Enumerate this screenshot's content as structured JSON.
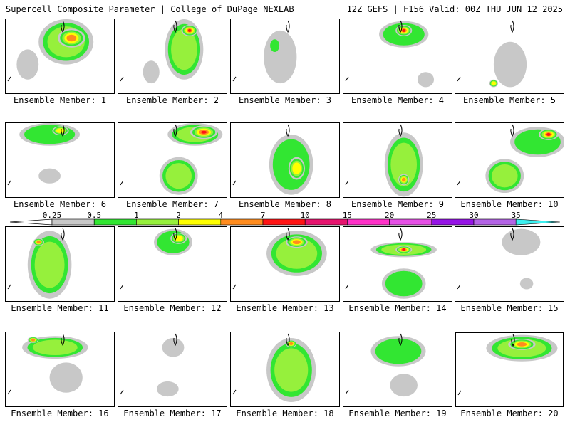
{
  "header": {
    "title_left": "Supercell Composite Parameter | College of DuPage NEXLAB",
    "title_right": "12Z GEFS | F156 Valid: 00Z THU JUN 12 2025"
  },
  "panels": [
    {
      "label": "Ensemble Member: 1",
      "blobs": [
        [
          0.55,
          0.3,
          0.5,
          0.6,
          3
        ],
        [
          0.6,
          0.25,
          0.25,
          0.25,
          7
        ],
        [
          0.2,
          0.6,
          0.2,
          0.4,
          1
        ]
      ]
    },
    {
      "label": "Ensemble Member: 2",
      "blobs": [
        [
          0.6,
          0.4,
          0.35,
          0.8,
          3
        ],
        [
          0.65,
          0.15,
          0.15,
          0.15,
          10
        ],
        [
          0.3,
          0.7,
          0.15,
          0.3,
          1
        ]
      ]
    },
    {
      "label": "Ensemble Member: 3",
      "blobs": [
        [
          0.45,
          0.5,
          0.3,
          0.7,
          1
        ],
        [
          0.4,
          0.35,
          0.1,
          0.2,
          2
        ]
      ]
    },
    {
      "label": "Ensemble Member: 4",
      "blobs": [
        [
          0.55,
          0.2,
          0.45,
          0.35,
          2
        ],
        [
          0.55,
          0.15,
          0.15,
          0.15,
          10
        ],
        [
          0.75,
          0.8,
          0.15,
          0.2,
          1
        ]
      ]
    },
    {
      "label": "Ensemble Member: 5",
      "blobs": [
        [
          0.5,
          0.6,
          0.3,
          0.6,
          1
        ],
        [
          0.35,
          0.85,
          0.08,
          0.1,
          4
        ]
      ]
    },
    {
      "label": "Ensemble Member: 6",
      "blobs": [
        [
          0.4,
          0.15,
          0.55,
          0.3,
          2
        ],
        [
          0.5,
          0.1,
          0.15,
          0.12,
          4
        ],
        [
          0.4,
          0.7,
          0.2,
          0.2,
          1
        ]
      ]
    },
    {
      "label": "Ensemble Member: 7",
      "blobs": [
        [
          0.7,
          0.15,
          0.5,
          0.3,
          3
        ],
        [
          0.78,
          0.12,
          0.25,
          0.18,
          10
        ],
        [
          0.55,
          0.7,
          0.35,
          0.5,
          3
        ]
      ]
    },
    {
      "label": "Ensemble Member: 8",
      "blobs": [
        [
          0.55,
          0.55,
          0.4,
          0.8,
          2
        ],
        [
          0.6,
          0.6,
          0.15,
          0.3,
          4
        ]
      ]
    },
    {
      "label": "Ensemble Member: 9",
      "blobs": [
        [
          0.55,
          0.55,
          0.35,
          0.85,
          3
        ],
        [
          0.55,
          0.75,
          0.1,
          0.15,
          7
        ]
      ]
    },
    {
      "label": "Ensemble Member: 10",
      "blobs": [
        [
          0.75,
          0.25,
          0.5,
          0.4,
          2
        ],
        [
          0.85,
          0.15,
          0.18,
          0.15,
          10
        ],
        [
          0.45,
          0.7,
          0.35,
          0.45,
          3
        ]
      ]
    },
    {
      "label": "Ensemble Member: 11",
      "blobs": [
        [
          0.4,
          0.5,
          0.4,
          0.9,
          3
        ],
        [
          0.3,
          0.2,
          0.1,
          0.1,
          7
        ]
      ]
    },
    {
      "label": "Ensemble Member: 12",
      "blobs": [
        [
          0.5,
          0.2,
          0.35,
          0.35,
          2
        ],
        [
          0.55,
          0.15,
          0.15,
          0.15,
          4
        ]
      ]
    },
    {
      "label": "Ensemble Member: 13",
      "blobs": [
        [
          0.6,
          0.35,
          0.55,
          0.6,
          3
        ],
        [
          0.6,
          0.2,
          0.2,
          0.15,
          7
        ]
      ]
    },
    {
      "label": "Ensemble Member: 14",
      "blobs": [
        [
          0.55,
          0.3,
          0.6,
          0.2,
          3
        ],
        [
          0.55,
          0.3,
          0.15,
          0.1,
          10
        ],
        [
          0.55,
          0.75,
          0.4,
          0.4,
          2
        ]
      ]
    },
    {
      "label": "Ensemble Member: 15",
      "blobs": [
        [
          0.6,
          0.2,
          0.35,
          0.35,
          1
        ],
        [
          0.65,
          0.75,
          0.12,
          0.15,
          1
        ]
      ]
    },
    {
      "label": "Ensemble Member: 16",
      "blobs": [
        [
          0.45,
          0.2,
          0.6,
          0.3,
          3
        ],
        [
          0.25,
          0.1,
          0.1,
          0.08,
          7
        ],
        [
          0.55,
          0.6,
          0.3,
          0.4,
          1
        ]
      ]
    },
    {
      "label": "Ensemble Member: 17",
      "blobs": [
        [
          0.5,
          0.2,
          0.2,
          0.25,
          1
        ],
        [
          0.45,
          0.75,
          0.2,
          0.2,
          1
        ]
      ]
    },
    {
      "label": "Ensemble Member: 18",
      "blobs": [
        [
          0.55,
          0.5,
          0.45,
          0.85,
          3
        ],
        [
          0.55,
          0.15,
          0.1,
          0.1,
          7
        ]
      ]
    },
    {
      "label": "Ensemble Member: 19",
      "blobs": [
        [
          0.5,
          0.25,
          0.5,
          0.4,
          2
        ],
        [
          0.55,
          0.7,
          0.25,
          0.3,
          1
        ]
      ]
    },
    {
      "label": "Ensemble Member: 20",
      "blobs": [
        [
          0.6,
          0.2,
          0.65,
          0.35,
          3
        ],
        [
          0.6,
          0.15,
          0.25,
          0.15,
          7
        ]
      ]
    }
  ],
  "selected_panel": 20,
  "colorbar": {
    "thresholds": [
      "0.25",
      "0.5",
      "1",
      "2",
      "4",
      "7",
      "10",
      "15",
      "20",
      "25",
      "30",
      "35"
    ],
    "colors": [
      "#c8c8c8",
      "#32e632",
      "#96f03c",
      "#ffff00",
      "#ff8c1e",
      "#ff1414",
      "#e6146e",
      "#ff32c8",
      "#e650e6",
      "#9614e6",
      "#b464e6",
      "#3cf0f0"
    ]
  },
  "level_colors": {
    "1": "#c8c8c8",
    "2": "#32e632",
    "3": "#96f03c",
    "4": "#ffff00",
    "7": "#ff8c1e",
    "10": "#ff1414"
  }
}
